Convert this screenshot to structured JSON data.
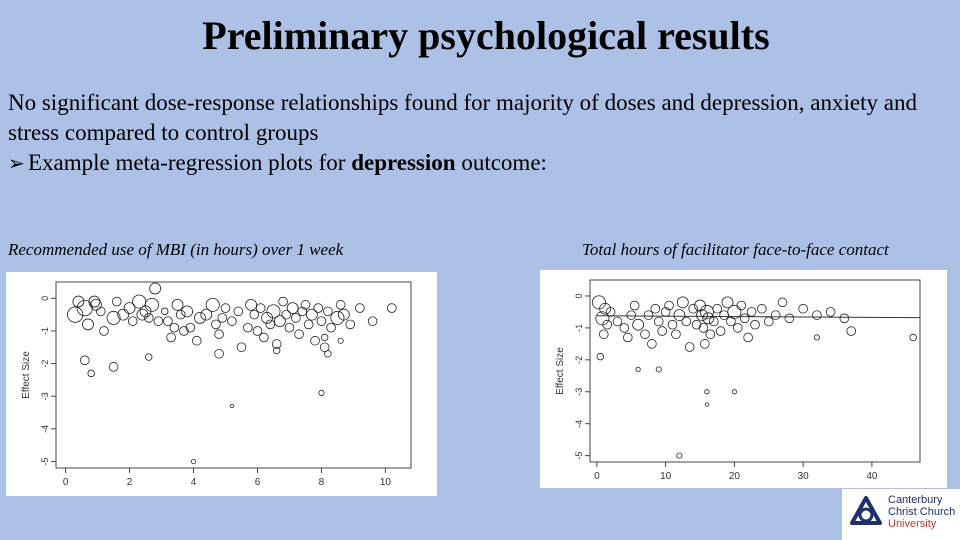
{
  "slide": {
    "title": "Preliminary psychological results",
    "line1": "No significant dose-response relationships found for majority of doses and depression, anxiety and stress compared to control groups",
    "bullet_prefix": "Example meta-regression plots for ",
    "bullet_bold": "depression",
    "bullet_suffix": " outcome:"
  },
  "logo": {
    "line1": "Canterbury",
    "line2": "Christ Church",
    "line3": "University"
  },
  "chart_data": [
    {
      "type": "scatter",
      "title": "Recommended use of MBI (in hours) over 1 week",
      "xlabel": "",
      "ylabel": "Effect Size",
      "xlim": [
        -0.3,
        10.8
      ],
      "ylim": [
        -5.2,
        0.5
      ],
      "xticks": [
        0,
        2,
        4,
        6,
        8,
        10
      ],
      "yticks": [
        0,
        -1,
        -2,
        -3,
        -4,
        -5
      ],
      "grid": false,
      "regression_line": null,
      "points": [
        [
          0.3,
          -0.5,
          0.35
        ],
        [
          0.4,
          -0.1,
          0.25
        ],
        [
          0.6,
          -0.3,
          0.35
        ],
        [
          0.7,
          -0.8,
          0.25
        ],
        [
          0.9,
          -0.1,
          0.25
        ],
        [
          0.6,
          -1.9,
          0.2
        ],
        [
          0.8,
          -2.3,
          0.15
        ],
        [
          0.95,
          -0.2,
          0.25
        ],
        [
          1.1,
          -0.4,
          0.2
        ],
        [
          1.2,
          -1.0,
          0.2
        ],
        [
          1.5,
          -0.6,
          0.3
        ],
        [
          1.6,
          -0.1,
          0.2
        ],
        [
          1.5,
          -2.1,
          0.2
        ],
        [
          1.8,
          -0.5,
          0.25
        ],
        [
          2.0,
          -0.3,
          0.25
        ],
        [
          2.1,
          -0.7,
          0.2
        ],
        [
          2.3,
          -0.1,
          0.3
        ],
        [
          2.4,
          -0.5,
          0.25
        ],
        [
          2.5,
          -0.4,
          0.25
        ],
        [
          2.6,
          -0.6,
          0.2
        ],
        [
          2.7,
          -0.2,
          0.3
        ],
        [
          2.8,
          0.3,
          0.25
        ],
        [
          2.9,
          -0.7,
          0.2
        ],
        [
          2.6,
          -1.8,
          0.15
        ],
        [
          3.1,
          -0.4,
          0.15
        ],
        [
          3.2,
          -0.7,
          0.2
        ],
        [
          3.3,
          -1.2,
          0.2
        ],
        [
          3.4,
          -0.9,
          0.2
        ],
        [
          3.5,
          -0.2,
          0.25
        ],
        [
          3.6,
          -0.5,
          0.2
        ],
        [
          3.7,
          -1.0,
          0.2
        ],
        [
          3.8,
          -0.4,
          0.25
        ],
        [
          3.9,
          -0.9,
          0.2
        ],
        [
          4.1,
          -1.3,
          0.2
        ],
        [
          4.2,
          -0.6,
          0.25
        ],
        [
          4.4,
          -0.5,
          0.25
        ],
        [
          4.6,
          -0.2,
          0.3
        ],
        [
          4.7,
          -0.8,
          0.2
        ],
        [
          4.8,
          -1.1,
          0.2
        ],
        [
          4.9,
          -0.6,
          0.2
        ],
        [
          5.0,
          -0.3,
          0.2
        ],
        [
          5.2,
          -0.7,
          0.2
        ],
        [
          4.8,
          -1.7,
          0.2
        ],
        [
          5.4,
          -0.4,
          0.2
        ],
        [
          5.5,
          -1.5,
          0.2
        ],
        [
          5.7,
          -0.9,
          0.2
        ],
        [
          5.8,
          -0.2,
          0.25
        ],
        [
          5.9,
          -0.5,
          0.2
        ],
        [
          6.0,
          -1.0,
          0.2
        ],
        [
          6.1,
          -0.3,
          0.2
        ],
        [
          6.2,
          -1.2,
          0.2
        ],
        [
          6.3,
          -0.6,
          0.25
        ],
        [
          6.4,
          -0.8,
          0.2
        ],
        [
          6.5,
          -0.4,
          0.3
        ],
        [
          6.6,
          -1.4,
          0.2
        ],
        [
          6.7,
          -0.7,
          0.25
        ],
        [
          6.8,
          -0.1,
          0.2
        ],
        [
          6.9,
          -0.5,
          0.2
        ],
        [
          7.0,
          -0.9,
          0.2
        ],
        [
          7.1,
          -0.3,
          0.25
        ],
        [
          7.2,
          -0.6,
          0.2
        ],
        [
          7.3,
          -1.1,
          0.2
        ],
        [
          7.4,
          -0.4,
          0.2
        ],
        [
          7.5,
          -0.2,
          0.2
        ],
        [
          7.6,
          -0.8,
          0.2
        ],
        [
          7.7,
          -0.5,
          0.25
        ],
        [
          7.8,
          -1.3,
          0.2
        ],
        [
          7.9,
          -0.3,
          0.2
        ],
        [
          8.0,
          -0.7,
          0.2
        ],
        [
          8.1,
          -1.5,
          0.2
        ],
        [
          8.2,
          -0.4,
          0.2
        ],
        [
          8.3,
          -0.9,
          0.2
        ],
        [
          8.5,
          -0.6,
          0.3
        ],
        [
          8.6,
          -0.2,
          0.2
        ],
        [
          8.7,
          -0.5,
          0.25
        ],
        [
          8.9,
          -0.8,
          0.2
        ],
        [
          9.2,
          -0.3,
          0.2
        ],
        [
          9.6,
          -0.7,
          0.2
        ],
        [
          10.2,
          -0.3,
          0.2
        ],
        [
          8.1,
          -1.2,
          0.15
        ],
        [
          8.6,
          -1.3,
          0.12
        ],
        [
          5.2,
          -3.3,
          0.08
        ],
        [
          4.0,
          -5.0,
          0.1
        ],
        [
          8.0,
          -2.9,
          0.12
        ],
        [
          6.6,
          -1.6,
          0.15
        ],
        [
          8.2,
          -1.7,
          0.15
        ]
      ]
    },
    {
      "type": "scatter",
      "title": "Total hours of facilitator face-to-face contact",
      "xlabel": "",
      "ylabel": "Effect Size",
      "xlim": [
        -1,
        47
      ],
      "ylim": [
        -5.2,
        0.5
      ],
      "xticks": [
        0,
        10,
        20,
        30,
        40
      ],
      "yticks": [
        0,
        -1,
        -2,
        -3,
        -4,
        -5
      ],
      "grid": false,
      "regression_line": [
        [
          0,
          -0.62
        ],
        [
          47,
          -0.68
        ]
      ],
      "points": [
        [
          0.3,
          -0.2,
          0.3
        ],
        [
          0.8,
          -0.7,
          0.3
        ],
        [
          1.2,
          -0.4,
          0.25
        ],
        [
          1.5,
          -0.9,
          0.2
        ],
        [
          1.0,
          -1.2,
          0.2
        ],
        [
          0.5,
          -1.9,
          0.15
        ],
        [
          2.0,
          -0.5,
          0.2
        ],
        [
          3.0,
          -0.8,
          0.2
        ],
        [
          4.0,
          -1.0,
          0.2
        ],
        [
          4.5,
          -1.3,
          0.2
        ],
        [
          5.0,
          -0.6,
          0.2
        ],
        [
          5.5,
          -0.3,
          0.2
        ],
        [
          6.0,
          -0.9,
          0.25
        ],
        [
          7.0,
          -1.2,
          0.2
        ],
        [
          7.5,
          -0.6,
          0.2
        ],
        [
          8.0,
          -1.5,
          0.2
        ],
        [
          8.5,
          -0.4,
          0.2
        ],
        [
          9.0,
          -0.8,
          0.2
        ],
        [
          9.5,
          -1.1,
          0.2
        ],
        [
          10.0,
          -0.5,
          0.2
        ],
        [
          10.5,
          -0.3,
          0.2
        ],
        [
          11.0,
          -0.9,
          0.2
        ],
        [
          11.5,
          -1.2,
          0.2
        ],
        [
          12.0,
          -0.6,
          0.25
        ],
        [
          12.5,
          -0.2,
          0.25
        ],
        [
          13.0,
          -0.8,
          0.2
        ],
        [
          13.5,
          -1.6,
          0.2
        ],
        [
          14.0,
          -0.4,
          0.2
        ],
        [
          14.5,
          -0.9,
          0.2
        ],
        [
          15.0,
          -0.3,
          0.25
        ],
        [
          15.3,
          -0.6,
          0.25
        ],
        [
          15.5,
          -1.0,
          0.2
        ],
        [
          15.7,
          -1.5,
          0.2
        ],
        [
          16.0,
          -0.5,
          0.3
        ],
        [
          16.2,
          -0.7,
          0.25
        ],
        [
          16.5,
          -1.2,
          0.2
        ],
        [
          17.0,
          -0.8,
          0.2
        ],
        [
          17.5,
          -0.4,
          0.2
        ],
        [
          18.0,
          -1.1,
          0.2
        ],
        [
          18.5,
          -0.6,
          0.2
        ],
        [
          19.0,
          -0.2,
          0.25
        ],
        [
          19.5,
          -0.8,
          0.2
        ],
        [
          20.0,
          -0.5,
          0.3
        ],
        [
          20.5,
          -1.0,
          0.2
        ],
        [
          21.0,
          -0.3,
          0.2
        ],
        [
          21.5,
          -0.7,
          0.2
        ],
        [
          22.0,
          -1.3,
          0.2
        ],
        [
          22.5,
          -0.5,
          0.2
        ],
        [
          23.0,
          -0.9,
          0.2
        ],
        [
          24.0,
          -0.4,
          0.2
        ],
        [
          25.0,
          -0.8,
          0.2
        ],
        [
          26.0,
          -0.6,
          0.2
        ],
        [
          27.0,
          -0.2,
          0.2
        ],
        [
          28.0,
          -0.7,
          0.2
        ],
        [
          30.0,
          -0.4,
          0.2
        ],
        [
          32.0,
          -0.6,
          0.2
        ],
        [
          34.0,
          -0.5,
          0.2
        ],
        [
          36.0,
          -0.7,
          0.2
        ],
        [
          37.0,
          -1.1,
          0.2
        ],
        [
          46.0,
          -1.3,
          0.15
        ],
        [
          16.0,
          -3.0,
          0.1
        ],
        [
          20.0,
          -3.0,
          0.1
        ],
        [
          16.0,
          -3.4,
          0.08
        ],
        [
          12.0,
          -5.0,
          0.12
        ],
        [
          9.0,
          -2.3,
          0.12
        ],
        [
          32.0,
          -1.3,
          0.12
        ],
        [
          6.0,
          -2.3,
          0.1
        ]
      ]
    }
  ]
}
